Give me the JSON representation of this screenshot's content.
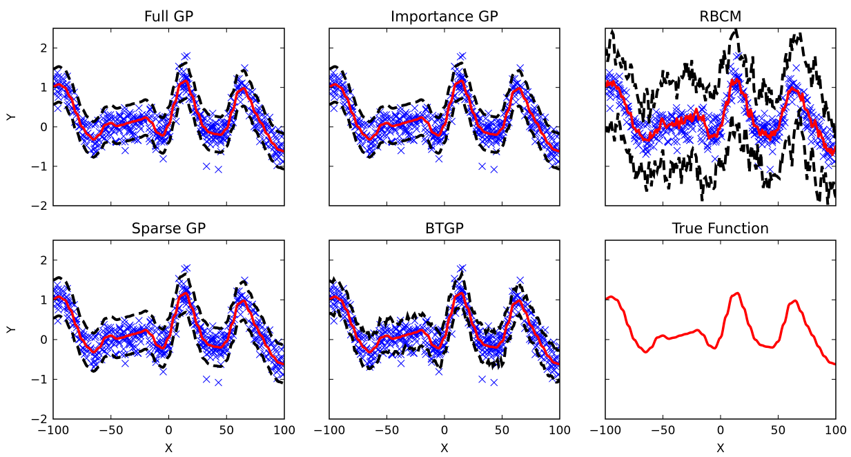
{
  "figure": {
    "colors": {
      "mean": "#ff0000",
      "band": "#000000",
      "obs": "#0000ff",
      "frame": "#000000"
    },
    "marker": "x"
  },
  "chart_data": [
    {
      "type": "line",
      "title": "Full GP",
      "xlabel": "",
      "ylabel": "Y",
      "xlim": [
        -100,
        100
      ],
      "ylim": [
        -2,
        2.5
      ],
      "xticks": [],
      "yticks": [
        -2,
        -1,
        0,
        1,
        2
      ],
      "band_half_width": 0.45,
      "band_noise": 0.0,
      "mean_noise": 0.0,
      "has_observations": true
    },
    {
      "type": "line",
      "title": "Importance GP",
      "xlabel": "",
      "ylabel": "",
      "xlim": [
        -100,
        100
      ],
      "ylim": [
        -2,
        2.5
      ],
      "xticks": [],
      "yticks": [],
      "band_half_width": 0.45,
      "band_noise": 0.0,
      "mean_noise": 0.0,
      "has_observations": true
    },
    {
      "type": "line",
      "title": "RBCM",
      "xlabel": "",
      "ylabel": "",
      "xlim": [
        -100,
        100
      ],
      "ylim": [
        -2,
        2.5
      ],
      "xticks": [],
      "yticks": [],
      "band_half_width": 1.05,
      "band_noise": 0.22,
      "mean_noise": 0.07,
      "has_observations": true
    },
    {
      "type": "line",
      "title": "Sparse GP",
      "xlabel": "X",
      "ylabel": "Y",
      "xlim": [
        -100,
        100
      ],
      "ylim": [
        -2,
        2.5
      ],
      "xticks": [
        -100,
        -50,
        0,
        50,
        100
      ],
      "yticks": [
        -2,
        -1,
        0,
        1,
        2
      ],
      "band_half_width": 0.48,
      "band_noise": 0.0,
      "mean_noise": 0.0,
      "has_observations": true
    },
    {
      "type": "line",
      "title": "BTGP",
      "xlabel": "X",
      "ylabel": "",
      "xlim": [
        -100,
        100
      ],
      "ylim": [
        -2,
        2.5
      ],
      "xticks": [
        -100,
        -50,
        0,
        50,
        100
      ],
      "yticks": [],
      "band_half_width": 0.42,
      "band_noise": 0.05,
      "mean_noise": 0.0,
      "has_observations": true
    },
    {
      "type": "line",
      "title": "True Function",
      "xlabel": "X",
      "ylabel": "",
      "xlim": [
        -100,
        100
      ],
      "ylim": [
        -2,
        2.5
      ],
      "xticks": [
        -100,
        -50,
        0,
        50,
        100
      ],
      "yticks": [],
      "band_half_width": 0.0,
      "band_noise": 0.0,
      "mean_noise": 0.0,
      "has_observations": false
    }
  ],
  "true_function": {
    "x": [
      -100,
      -95,
      -90,
      -85,
      -80,
      -75,
      -70,
      -65,
      -60,
      -55,
      -50,
      -45,
      -40,
      -35,
      -30,
      -25,
      -20,
      -15,
      -10,
      -5,
      0,
      5,
      10,
      15,
      20,
      25,
      30,
      35,
      40,
      45,
      50,
      55,
      60,
      65,
      70,
      75,
      80,
      85,
      90,
      95,
      100
    ],
    "y": [
      1.02,
      1.08,
      1.0,
      0.75,
      0.35,
      0.0,
      -0.2,
      -0.32,
      -0.2,
      0.05,
      0.1,
      0.02,
      0.05,
      0.1,
      0.14,
      0.18,
      0.24,
      0.12,
      -0.15,
      -0.22,
      0.05,
      0.6,
      1.1,
      1.17,
      0.8,
      0.35,
      0.0,
      -0.14,
      -0.18,
      -0.2,
      -0.05,
      0.4,
      0.9,
      0.98,
      0.7,
      0.35,
      0.1,
      -0.18,
      -0.42,
      -0.58,
      -0.62
    ]
  }
}
